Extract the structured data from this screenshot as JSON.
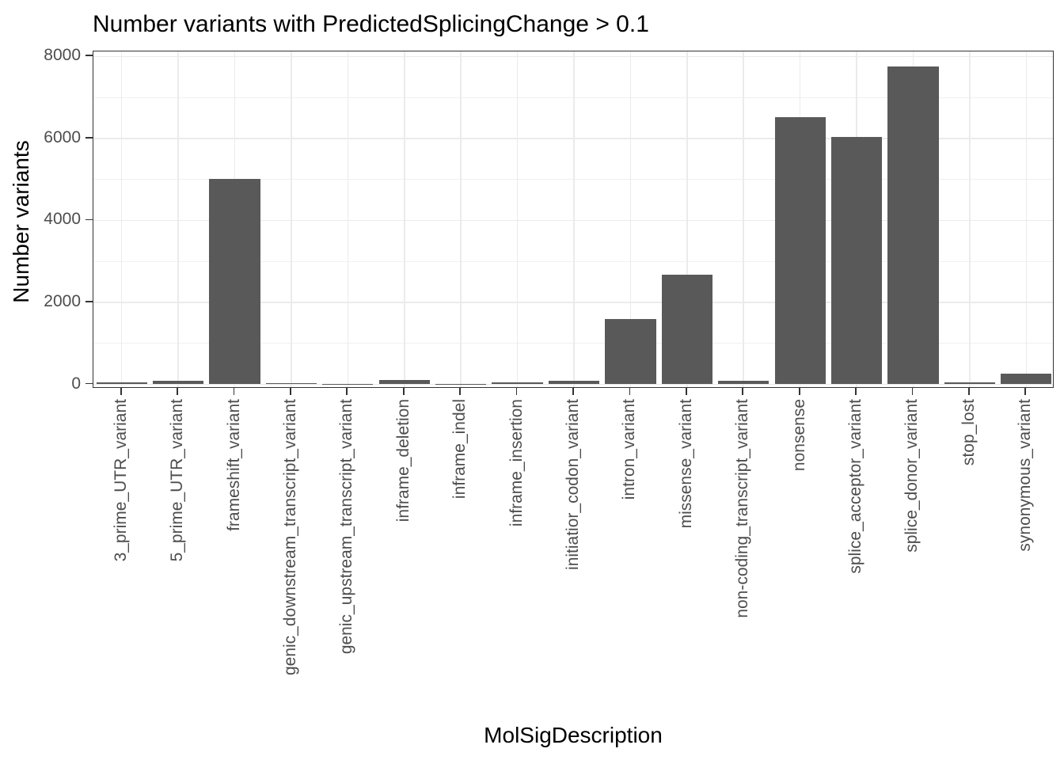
{
  "chart_data": {
    "type": "bar",
    "title": "Number variants with PredictedSplicingChange > 0.1",
    "xlabel": "MolSigDescription",
    "ylabel": "Number variants",
    "categories": [
      "3_prime_UTR_variant",
      "5_prime_UTR_variant",
      "frameshift_variant",
      "genic_downstream_transcript_variant",
      "genic_upstream_transcript_variant",
      "inframe_deletion",
      "inframe_indel",
      "inframe_insertion",
      "initiatior_codon_variant",
      "intron_variant",
      "missense_variant",
      "non-coding_transcript_variant",
      "nonsense",
      "splice_acceptor_variant",
      "splice_donor_variant",
      "stop_lost",
      "synonymous_variant"
    ],
    "values": [
      50,
      80,
      5010,
      25,
      5,
      110,
      5,
      40,
      95,
      1600,
      2680,
      90,
      6510,
      6030,
      7750,
      40,
      260
    ],
    "ylim": [
      0,
      8120
    ],
    "y_major_ticks": [
      0,
      2000,
      4000,
      6000,
      8000
    ],
    "y_minor_ticks": [
      1000,
      3000,
      5000,
      7000
    ],
    "grid": "on",
    "legend": "none",
    "bar_color": "#595959",
    "panel_border_color": "#333333",
    "grid_major_color": "#ebebeb",
    "grid_minor_color": "#f0f0f0",
    "tick_label_color": "#4d4d4d",
    "bar_width_fraction": 0.9
  }
}
